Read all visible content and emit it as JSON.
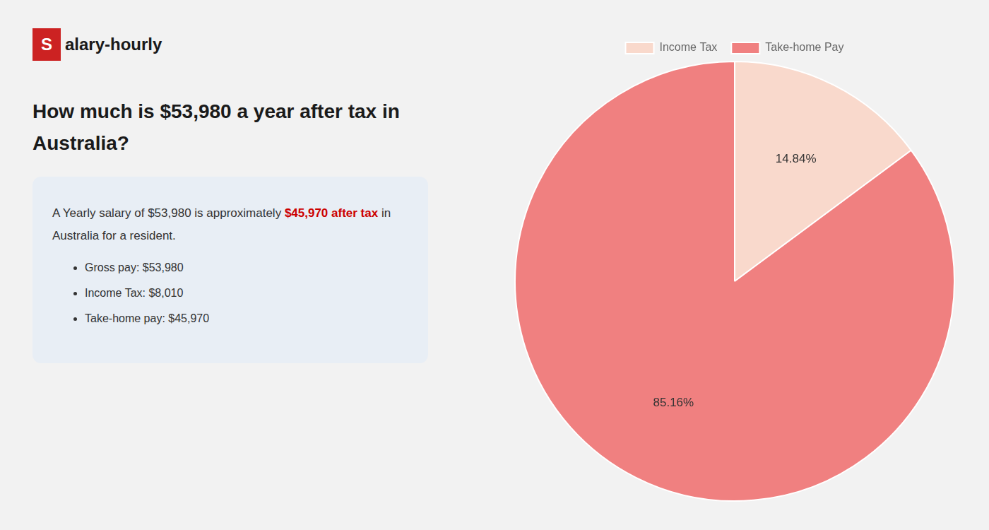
{
  "chart_data": {
    "type": "pie",
    "title": [
      "How much is $53,980 a year after tax in",
      "Australia?"
    ],
    "annotations": [
      "S",
      "alary-hourly",
      "A Yearly salary of $53,980 is approximately ",
      "$45,970 after tax",
      " in",
      "Australia for a resident.",
      "Gross pay: $53,980",
      "Income Tax: $8,010",
      "Take-home pay: $45,970"
    ],
    "categories": [
      "Income Tax",
      "Take-home Pay"
    ],
    "values": [
      14.84,
      85.16
    ],
    "value_labels": [
      "14.84%",
      "85.16%"
    ],
    "colors": [
      "#f9d9cc",
      "#f08080"
    ],
    "data_labels": true,
    "legend": "top"
  }
}
